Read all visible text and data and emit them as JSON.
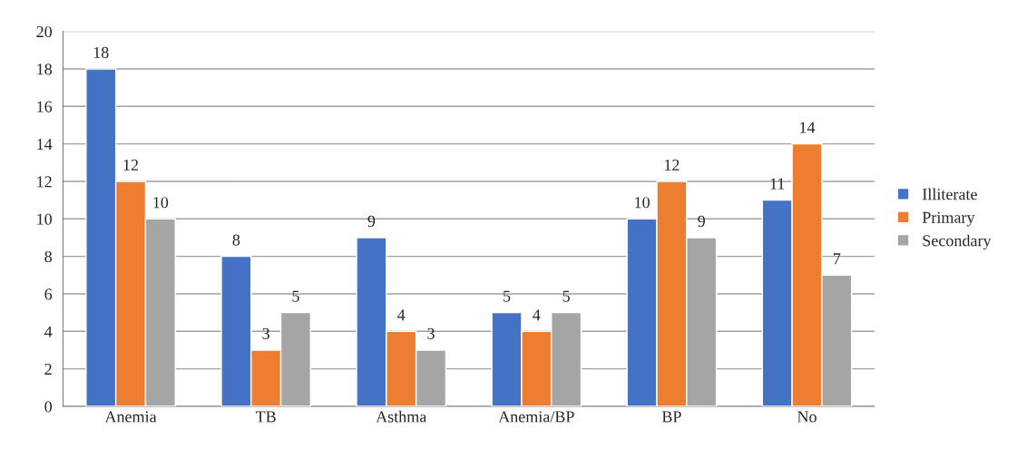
{
  "chart_data": {
    "type": "bar",
    "categories": [
      "Anemia",
      "TB",
      "Asthma",
      "Anemia/BP",
      "BP",
      "No"
    ],
    "series": [
      {
        "name": "Illiterate",
        "color": "#4472c4",
        "values": [
          18,
          8,
          9,
          5,
          10,
          11
        ]
      },
      {
        "name": "Primary",
        "color": "#ed7d31",
        "values": [
          12,
          3,
          4,
          4,
          12,
          14
        ]
      },
      {
        "name": "Secondary",
        "color": "#a5a5a5",
        "values": [
          10,
          5,
          3,
          5,
          9,
          7
        ]
      }
    ],
    "ylim": [
      0,
      20
    ],
    "yticks": [
      0,
      2,
      4,
      6,
      8,
      10,
      12,
      14,
      16,
      18,
      20
    ],
    "grid": "y",
    "legend": "right",
    "data_labels": true
  }
}
